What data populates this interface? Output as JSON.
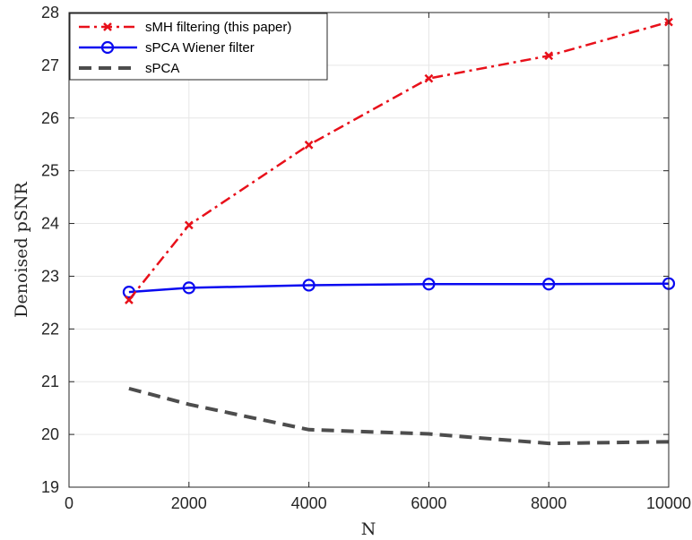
{
  "chart_data": {
    "type": "line",
    "xlabel": "N",
    "ylabel": "Denoised pSNR",
    "xlim": [
      0,
      10000
    ],
    "ylim": [
      19,
      28
    ],
    "xticks": [
      "0",
      "2000",
      "4000",
      "6000",
      "8000",
      "10000"
    ],
    "yticks": [
      "19",
      "20",
      "21",
      "22",
      "23",
      "24",
      "25",
      "26",
      "27",
      "28"
    ],
    "grid": true,
    "legend_position": "top-left",
    "x": [
      1000,
      2000,
      4000,
      6000,
      8000,
      10000
    ],
    "series": [
      {
        "name": "sMH filtering (this paper)",
        "color": "#e8101a",
        "style": "dash-dot",
        "marker": "x",
        "values": [
          22.55,
          23.97,
          25.49,
          26.75,
          27.18,
          27.82
        ]
      },
      {
        "name": "sPCA Wiener filter",
        "color": "#0a0af0",
        "style": "solid",
        "marker": "circle",
        "values": [
          22.7,
          22.78,
          22.83,
          22.85,
          22.85,
          22.86
        ]
      },
      {
        "name": "sPCA",
        "color": "#4d4d4d",
        "style": "dashed",
        "marker": "none",
        "values": [
          20.87,
          20.57,
          20.09,
          20.01,
          19.83,
          19.86
        ]
      }
    ]
  }
}
